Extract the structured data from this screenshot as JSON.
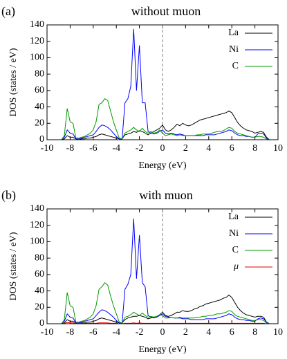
{
  "chart_data": [
    {
      "type": "line",
      "panel_label": "(a)",
      "title": "without muon",
      "x_label": "Energy (eV)",
      "y_label": "DOS (states / eV)",
      "xlim": [
        -10,
        10
      ],
      "ylim": [
        0,
        140
      ],
      "xticks": [
        -10,
        -8,
        -6,
        -4,
        -2,
        0,
        2,
        4,
        6,
        8,
        10
      ],
      "yticks": [
        0,
        20,
        40,
        60,
        80,
        100,
        120,
        140
      ],
      "vlines": [
        0
      ],
      "legend": "upper right",
      "x": [
        -9,
        -8.75,
        -8.5,
        -8.25,
        -8,
        -7.75,
        -7.5,
        -7.25,
        -7,
        -6.75,
        -6.5,
        -6.25,
        -6,
        -5.75,
        -5.5,
        -5.25,
        -5,
        -4.75,
        -4.5,
        -4.25,
        -4,
        -3.75,
        -3.5,
        -3.25,
        -3,
        -2.75,
        -2.5,
        -2.25,
        -2,
        -1.75,
        -1.5,
        -1.25,
        -1,
        -0.75,
        -0.5,
        -0.25,
        0,
        0.25,
        0.5,
        0.75,
        1,
        1.25,
        1.5,
        1.75,
        2,
        2.25,
        2.5,
        2.75,
        3,
        3.25,
        3.5,
        3.75,
        4,
        4.25,
        4.5,
        4.75,
        5,
        5.25,
        5.5,
        5.75,
        6,
        6.25,
        6.5,
        6.75,
        7,
        7.25,
        7.5,
        7.75,
        8,
        8.25,
        8.5,
        8.75,
        9,
        9.25
      ],
      "series": [
        {
          "name": "La",
          "color": "#000000",
          "values": [
            0,
            0,
            1,
            5,
            3,
            3,
            1,
            0,
            1,
            1,
            2,
            2,
            3,
            4,
            6,
            7,
            6,
            5,
            4,
            3,
            2,
            1,
            1,
            6,
            7,
            8,
            10,
            9,
            11,
            10,
            8,
            6,
            8,
            10,
            12,
            14,
            18,
            12,
            10,
            12,
            15,
            19,
            17,
            20,
            18,
            17,
            18,
            20,
            22,
            24,
            25,
            26,
            27,
            28,
            29,
            30,
            31,
            32,
            33,
            35,
            33,
            27,
            21,
            17,
            14,
            12,
            11,
            10,
            8,
            9,
            10,
            9,
            3,
            0
          ]
        },
        {
          "name": "Ni",
          "color": "#0000ff",
          "values": [
            0,
            0,
            3,
            12,
            8,
            7,
            1,
            1,
            2,
            3,
            4,
            5,
            6,
            10,
            15,
            18,
            17,
            15,
            12,
            8,
            4,
            1,
            1,
            45,
            50,
            65,
            135,
            60,
            115,
            45,
            45,
            10,
            8,
            7,
            8,
            10,
            12,
            8,
            7,
            8,
            7,
            6,
            7,
            6,
            5,
            5,
            5,
            5,
            5,
            5,
            5,
            6,
            6,
            6,
            6,
            7,
            8,
            9,
            10,
            12,
            11,
            8,
            6,
            5,
            5,
            4,
            4,
            3,
            3,
            7,
            8,
            7,
            2,
            0
          ]
        },
        {
          "name": "C",
          "color": "#009900",
          "values": [
            0,
            0,
            5,
            38,
            22,
            20,
            2,
            2,
            3,
            4,
            6,
            8,
            12,
            22,
            43,
            45,
            50,
            48,
            35,
            22,
            12,
            2,
            1,
            8,
            10,
            12,
            15,
            12,
            10,
            14,
            10,
            8,
            10,
            8,
            9,
            12,
            8,
            5,
            6,
            7,
            6,
            5,
            6,
            5,
            5,
            5,
            5,
            5,
            6,
            6,
            7,
            7,
            7,
            8,
            9,
            10,
            10,
            11,
            13,
            15,
            14,
            10,
            8,
            7,
            6,
            5,
            4,
            3,
            3,
            4,
            4,
            3,
            1,
            0
          ]
        }
      ]
    },
    {
      "type": "line",
      "panel_label": "(b)",
      "title": "with muon",
      "x_label": "Energy (eV)",
      "y_label": "DOS (states / eV)",
      "xlim": [
        -10,
        10
      ],
      "ylim": [
        0,
        140
      ],
      "xticks": [
        -10,
        -8,
        -6,
        -4,
        -2,
        0,
        2,
        4,
        6,
        8,
        10
      ],
      "yticks": [
        0,
        20,
        40,
        60,
        80,
        100,
        120,
        140
      ],
      "vlines": [
        0
      ],
      "legend": "upper right",
      "x": [
        -9,
        -8.75,
        -8.5,
        -8.25,
        -8,
        -7.75,
        -7.5,
        -7.25,
        -7,
        -6.75,
        -6.5,
        -6.25,
        -6,
        -5.75,
        -5.5,
        -5.25,
        -5,
        -4.75,
        -4.5,
        -4.25,
        -4,
        -3.75,
        -3.5,
        -3.25,
        -3,
        -2.75,
        -2.5,
        -2.25,
        -2,
        -1.75,
        -1.5,
        -1.25,
        -1,
        -0.75,
        -0.5,
        -0.25,
        0,
        0.25,
        0.5,
        0.75,
        1,
        1.25,
        1.5,
        1.75,
        2,
        2.25,
        2.5,
        2.75,
        3,
        3.25,
        3.5,
        3.75,
        4,
        4.25,
        4.5,
        4.75,
        5,
        5.25,
        5.5,
        5.75,
        6,
        6.25,
        6.5,
        6.75,
        7,
        7.25,
        7.5,
        7.75,
        8,
        8.25,
        8.5,
        8.75,
        9,
        9.25
      ],
      "series": [
        {
          "name": "La",
          "color": "#000000",
          "values": [
            0,
            0,
            1,
            5,
            3,
            3,
            1,
            0,
            1,
            1,
            2,
            2,
            3,
            4,
            6,
            7,
            6,
            5,
            4,
            3,
            2,
            1,
            1,
            5,
            7,
            8,
            9,
            9,
            10,
            9,
            8,
            6,
            7,
            8,
            9,
            11,
            14,
            10,
            9,
            10,
            12,
            14,
            14,
            16,
            15,
            15,
            16,
            18,
            19,
            21,
            22,
            24,
            25,
            26,
            27,
            28,
            29,
            31,
            32,
            35,
            32,
            26,
            20,
            16,
            13,
            11,
            10,
            9,
            8,
            9,
            9,
            8,
            2,
            0
          ]
        },
        {
          "name": "Ni",
          "color": "#0000ff",
          "values": [
            0,
            0,
            3,
            12,
            8,
            7,
            1,
            1,
            2,
            3,
            4,
            5,
            6,
            10,
            14,
            17,
            16,
            14,
            11,
            8,
            4,
            1,
            1,
            42,
            48,
            60,
            128,
            55,
            108,
            50,
            45,
            10,
            8,
            7,
            8,
            10,
            12,
            9,
            8,
            8,
            7,
            7,
            7,
            6,
            6,
            6,
            5,
            5,
            5,
            5,
            5,
            6,
            6,
            6,
            6,
            7,
            8,
            9,
            10,
            12,
            11,
            8,
            6,
            5,
            5,
            4,
            4,
            3,
            3,
            6,
            7,
            6,
            2,
            0
          ]
        },
        {
          "name": "C",
          "color": "#009900",
          "values": [
            0,
            0,
            5,
            38,
            22,
            20,
            2,
            2,
            3,
            4,
            6,
            8,
            12,
            22,
            42,
            45,
            50,
            47,
            34,
            22,
            12,
            2,
            1,
            8,
            9,
            11,
            14,
            12,
            10,
            13,
            10,
            8,
            9,
            8,
            9,
            11,
            10,
            7,
            7,
            8,
            7,
            7,
            8,
            7,
            7,
            7,
            7,
            7,
            8,
            8,
            9,
            9,
            10,
            10,
            11,
            12,
            12,
            13,
            14,
            16,
            15,
            11,
            9,
            8,
            7,
            6,
            5,
            4,
            4,
            5,
            5,
            4,
            1,
            0
          ]
        },
        {
          "name": "μ",
          "color": "#dd0000",
          "values": [
            0,
            0,
            0.5,
            1.5,
            1,
            1,
            0.5,
            0.5,
            0.5,
            0.5,
            0.5,
            0.5,
            0.5,
            0.5,
            1,
            1,
            1,
            1,
            0.5,
            0.5,
            0.5,
            0,
            0,
            0.5,
            0.5,
            0.5,
            1,
            0.5,
            1,
            0.5,
            0.5,
            0.5,
            0.5,
            0.5,
            0.5,
            0.5,
            0.5,
            0.5,
            0.5,
            0.5,
            0.5,
            0.5,
            0.5,
            0.5,
            0.5,
            0.5,
            0.5,
            0.5,
            0.5,
            0.5,
            0.5,
            0.5,
            0.5,
            0.5,
            0.5,
            0.5,
            0.5,
            0.5,
            0.5,
            0.5,
            0.5,
            0.5,
            0.5,
            0.5,
            0.5,
            0.5,
            0.5,
            0.5,
            0.5,
            0.5,
            0.5,
            0.5,
            0,
            0
          ]
        }
      ]
    }
  ]
}
